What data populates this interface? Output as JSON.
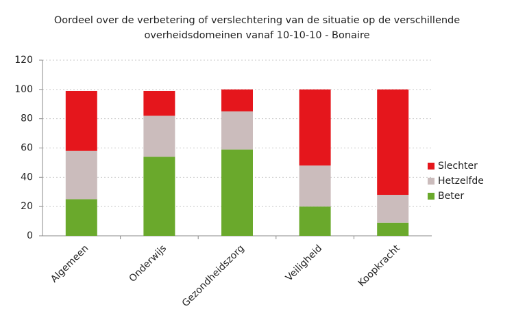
{
  "chart_data": {
    "type": "stacked_bar",
    "title": [
      "Oordeel over de verbetering of verslechtering van de situatie op de verschillende",
      "overheidsdomeinen vanaf 10-10-10 - Bonaire"
    ],
    "categories": [
      "Algemeen",
      "Onderwijs",
      "Gezondheidszorg",
      "Veiligheid",
      "Koopkracht"
    ],
    "series": [
      {
        "name": "Beter",
        "color": "#6aa92c",
        "values": [
          25,
          54,
          59,
          20,
          9
        ]
      },
      {
        "name": "Hetzelfde",
        "color": "#cbbcbc",
        "values": [
          33,
          28,
          26,
          28,
          19
        ]
      },
      {
        "name": "Slechter",
        "color": "#e5161c",
        "values": [
          41,
          17,
          15,
          52,
          72
        ]
      }
    ],
    "ylim": [
      0,
      120
    ],
    "yticks": [
      0,
      20,
      40,
      60,
      80,
      100,
      120
    ],
    "grid": true,
    "legend": "right"
  }
}
